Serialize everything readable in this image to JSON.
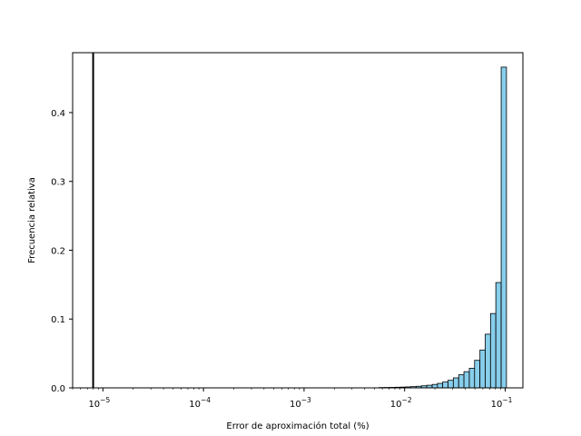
{
  "chart_data": {
    "type": "bar",
    "title": "",
    "xlabel": "Error de aproximación total (%)",
    "ylabel": "Frecuencia relativa",
    "x_scale": "log",
    "xlim": [
      5e-06,
      0.15
    ],
    "ylim": [
      0,
      0.487
    ],
    "grid": false,
    "x_ticks": [
      {
        "value": 1e-05,
        "mantissa": "10",
        "exponent": "−5"
      },
      {
        "value": 0.0001,
        "mantissa": "10",
        "exponent": "−4"
      },
      {
        "value": 0.001,
        "mantissa": "10",
        "exponent": "−3"
      },
      {
        "value": 0.01,
        "mantissa": "10",
        "exponent": "−2"
      },
      {
        "value": 0.1,
        "mantissa": "10",
        "exponent": "−1"
      }
    ],
    "y_ticks": [
      {
        "value": 0.0,
        "label": "0.0"
      },
      {
        "value": 0.1,
        "label": "0.1"
      },
      {
        "value": 0.2,
        "label": "0.2"
      },
      {
        "value": 0.3,
        "label": "0.3"
      },
      {
        "value": 0.4,
        "label": "0.4"
      }
    ],
    "bins_left": [
      0.00556,
      0.00628,
      0.00709,
      0.00801,
      0.00904,
      0.0102,
      0.0115,
      0.013,
      0.0147,
      0.0166,
      0.0188,
      0.0212,
      0.0239,
      0.027,
      0.0305,
      0.0345,
      0.0389,
      0.044,
      0.0496,
      0.0561,
      0.0633,
      0.0715,
      0.0807,
      0.0912
    ],
    "bin_ratio": 1.129,
    "values": [
      0.0005,
      0.0006,
      0.0007,
      0.0009,
      0.0011,
      0.0014,
      0.0018,
      0.0023,
      0.003,
      0.0038,
      0.005,
      0.0065,
      0.0085,
      0.011,
      0.0145,
      0.019,
      0.0235,
      0.0285,
      0.04,
      0.055,
      0.078,
      0.108,
      0.153,
      0.466
    ],
    "bar_color": "#87ceeb",
    "bar_edge_color": "#000000",
    "vline": {
      "x": 8e-06,
      "color": "#000000"
    }
  }
}
